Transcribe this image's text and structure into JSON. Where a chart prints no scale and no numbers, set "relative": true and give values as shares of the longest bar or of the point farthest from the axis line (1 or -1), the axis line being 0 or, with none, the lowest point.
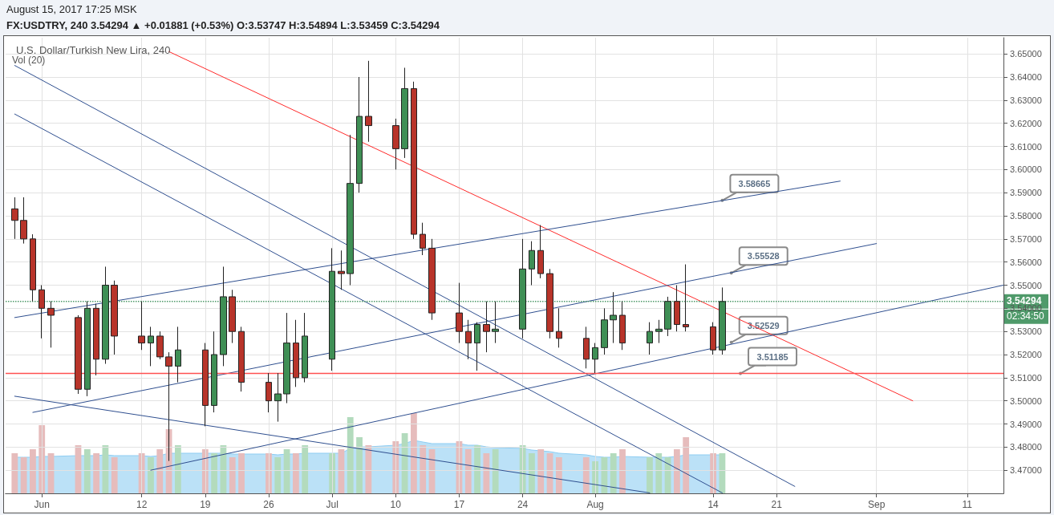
{
  "chart_data": [
    {
      "type": "candlestick",
      "title": "U.S. Dollar/Turkish New Lira, 240",
      "x": [
        "2017-05-29",
        "2017-05-30",
        "2017-05-31",
        "2017-06-01",
        "2017-06-02",
        "2017-06-05",
        "2017-06-06",
        "2017-06-07",
        "2017-06-08",
        "2017-06-09",
        "2017-06-12",
        "2017-06-13",
        "2017-06-14",
        "2017-06-15",
        "2017-06-16",
        "2017-06-19",
        "2017-06-20",
        "2017-06-21",
        "2017-06-22",
        "2017-06-23",
        "2017-06-26",
        "2017-06-27",
        "2017-06-28",
        "2017-06-29",
        "2017-06-30",
        "2017-07-03",
        "2017-07-04",
        "2017-07-05",
        "2017-07-06",
        "2017-07-07",
        "2017-07-10",
        "2017-07-11",
        "2017-07-12",
        "2017-07-13",
        "2017-07-14",
        "2017-07-17",
        "2017-07-18",
        "2017-07-19",
        "2017-07-20",
        "2017-07-21",
        "2017-07-24",
        "2017-07-25",
        "2017-07-26",
        "2017-07-27",
        "2017-07-28",
        "2017-07-31",
        "2017-08-01",
        "2017-08-02",
        "2017-08-03",
        "2017-08-04",
        "2017-08-07",
        "2017-08-08",
        "2017-08-09",
        "2017-08-10",
        "2017-08-11",
        "2017-08-14",
        "2017-08-15"
      ],
      "ohlc": [
        [
          3.583,
          3.588,
          3.57,
          3.578
        ],
        [
          3.578,
          3.588,
          3.568,
          3.57
        ],
        [
          3.57,
          3.572,
          3.543,
          3.548
        ],
        [
          3.548,
          3.55,
          3.527,
          3.54
        ],
        [
          3.54,
          3.543,
          3.523,
          3.537
        ],
        [
          3.536,
          3.537,
          3.503,
          3.505
        ],
        [
          3.505,
          3.543,
          3.502,
          3.54
        ],
        [
          3.54,
          3.542,
          3.511,
          3.518
        ],
        [
          3.518,
          3.558,
          3.516,
          3.55
        ],
        [
          3.55,
          3.552,
          3.52,
          3.528
        ],
        [
          3.528,
          3.543,
          3.522,
          3.525
        ],
        [
          3.525,
          3.532,
          3.515,
          3.528
        ],
        [
          3.528,
          3.53,
          3.518,
          3.519
        ],
        [
          3.519,
          3.521,
          3.474,
          3.515
        ],
        [
          3.515,
          3.532,
          3.508,
          3.522
        ],
        [
          3.522,
          3.525,
          3.489,
          3.498
        ],
        [
          3.498,
          3.53,
          3.495,
          3.52
        ],
        [
          3.52,
          3.558,
          3.515,
          3.545
        ],
        [
          3.545,
          3.548,
          3.525,
          3.53
        ],
        [
          3.53,
          3.532,
          3.504,
          3.508
        ],
        [
          3.508,
          3.512,
          3.495,
          3.5
        ],
        [
          3.5,
          3.512,
          3.491,
          3.503
        ],
        [
          3.503,
          3.538,
          3.499,
          3.525
        ],
        [
          3.525,
          3.535,
          3.506,
          3.51
        ],
        [
          3.51,
          3.538,
          3.508,
          3.528
        ],
        [
          3.518,
          3.566,
          3.513,
          3.556
        ],
        [
          3.556,
          3.565,
          3.548,
          3.555
        ],
        [
          3.555,
          3.615,
          3.55,
          3.594
        ],
        [
          3.594,
          3.64,
          3.59,
          3.623
        ],
        [
          3.623,
          3.647,
          3.612,
          3.619
        ],
        [
          3.619,
          3.622,
          3.6,
          3.609
        ],
        [
          3.609,
          3.644,
          3.605,
          3.635
        ],
        [
          3.635,
          3.638,
          3.57,
          3.572
        ],
        [
          3.572,
          3.577,
          3.563,
          3.566
        ],
        [
          3.566,
          3.57,
          3.535,
          3.538
        ],
        [
          3.538,
          3.551,
          3.525,
          3.53
        ],
        [
          3.53,
          3.535,
          3.518,
          3.525
        ],
        [
          3.525,
          3.534,
          3.513,
          3.533
        ],
        [
          3.533,
          3.543,
          3.521,
          3.53
        ],
        [
          3.53,
          3.543,
          3.525,
          3.531
        ],
        [
          3.531,
          3.57,
          3.527,
          3.557
        ],
        [
          3.557,
          3.569,
          3.55,
          3.565
        ],
        [
          3.565,
          3.576,
          3.553,
          3.555
        ],
        [
          3.555,
          3.557,
          3.527,
          3.53
        ],
        [
          3.53,
          3.54,
          3.523,
          3.527
        ],
        [
          3.527,
          3.532,
          3.514,
          3.518
        ],
        [
          3.518,
          3.525,
          3.512,
          3.523
        ],
        [
          3.523,
          3.54,
          3.52,
          3.535
        ],
        [
          3.535,
          3.547,
          3.525,
          3.537
        ],
        [
          3.537,
          3.543,
          3.522,
          3.525
        ],
        [
          3.525,
          3.534,
          3.52,
          3.53
        ],
        [
          3.53,
          3.535,
          3.525,
          3.531
        ],
        [
          3.531,
          3.545,
          3.528,
          3.543
        ],
        [
          3.543,
          3.55,
          3.53,
          3.533
        ],
        [
          3.533,
          3.559,
          3.53,
          3.532
        ],
        [
          3.532,
          3.534,
          3.52,
          3.522
        ],
        [
          3.522,
          3.549,
          3.52,
          3.54294
        ]
      ],
      "colors": [
        "#b8342a",
        "#b8342a",
        "#b8342a",
        "#b8342a",
        "#b8342a",
        "#b8342a",
        "#3f8f55",
        "#b8342a",
        "#3f8f55",
        "#b8342a",
        "#b8342a",
        "#3f8f55",
        "#b8342a",
        "#b8342a",
        "#3f8f55",
        "#b8342a",
        "#3f8f55",
        "#3f8f55",
        "#b8342a",
        "#b8342a",
        "#b8342a",
        "#3f8f55",
        "#3f8f55",
        "#b8342a",
        "#3f8f55",
        "#3f8f55",
        "#b8342a",
        "#3f8f55",
        "#3f8f55",
        "#b8342a",
        "#b8342a",
        "#3f8f55",
        "#b8342a",
        "#b8342a",
        "#b8342a",
        "#b8342a",
        "#b8342a",
        "#3f8f55",
        "#b8342a",
        "#3f8f55",
        "#3f8f55",
        "#3f8f55",
        "#b8342a",
        "#b8342a",
        "#b8342a",
        "#b8342a",
        "#3f8f55",
        "#3f8f55",
        "#3f8f55",
        "#b8342a",
        "#3f8f55",
        "#3f8f55",
        "#3f8f55",
        "#b8342a",
        "#b8342a",
        "#b8342a",
        "#3f8f55"
      ],
      "series": [
        {
          "type": "line",
          "color": "#ff2a2a",
          "x": [
            "2017-06-15",
            "2017-09-05"
          ],
          "values": [
            3.651,
            3.5
          ]
        },
        {
          "type": "line",
          "color": "#2f4f8f",
          "x": [
            "2017-05-29",
            "2017-08-28"
          ],
          "values": [
            3.536,
            3.595
          ]
        },
        {
          "type": "line",
          "color": "#2f4f8f",
          "x": [
            "2017-05-31",
            "2017-09-01"
          ],
          "values": [
            3.495,
            3.568
          ]
        },
        {
          "type": "line",
          "color": "#2f4f8f",
          "x": [
            "2017-06-13",
            "2017-09-15"
          ],
          "values": [
            3.47,
            3.55
          ]
        },
        {
          "type": "line",
          "color": "#2f4f8f",
          "x": [
            "2017-05-29",
            "2017-08-23"
          ],
          "values": [
            3.645,
            3.463
          ]
        },
        {
          "type": "line",
          "color": "#2f4f8f",
          "x": [
            "2017-05-29",
            "2017-08-15"
          ],
          "values": [
            3.624,
            3.4602
          ]
        },
        {
          "type": "line",
          "color": "#2f4f8f",
          "x": [
            "2017-05-29",
            "2017-08-07"
          ],
          "values": [
            3.502,
            3.4602
          ]
        }
      ],
      "marker": "none",
      "xlim": [
        "2017-05-28",
        "2017-09-15"
      ],
      "xticks": [
        {
          "value": "2017-06-01",
          "label": "Jun"
        },
        {
          "value": "2017-06-12",
          "label": "12"
        },
        {
          "value": "2017-06-19",
          "label": "19"
        },
        {
          "value": "2017-06-26",
          "label": "26"
        },
        {
          "value": "2017-07-03",
          "label": "Jul"
        },
        {
          "value": "2017-07-10",
          "label": "10"
        },
        {
          "value": "2017-07-17",
          "label": "17"
        },
        {
          "value": "2017-07-24",
          "label": "24"
        },
        {
          "value": "2017-08-01",
          "label": "Aug"
        },
        {
          "value": "2017-08-14",
          "label": "14"
        },
        {
          "value": "2017-08-21",
          "label": "21"
        },
        {
          "value": "2017-09-01",
          "label": "Sep"
        },
        {
          "value": "2017-09-11",
          "label": "11"
        }
      ],
      "ylim": [
        3.46,
        3.657
      ],
      "yticks": [
        {
          "value": 3.47,
          "label": "3.47000"
        },
        {
          "value": 3.48,
          "label": "3.48000"
        },
        {
          "value": 3.49,
          "label": "3.49000"
        },
        {
          "value": 3.5,
          "label": "3.50000"
        },
        {
          "value": 3.51,
          "label": "3.51000"
        },
        {
          "value": 3.52,
          "label": "3.52000"
        },
        {
          "value": 3.53,
          "label": "3.53000"
        },
        {
          "value": 3.54,
          "label": "3.54000"
        },
        {
          "value": 3.55,
          "label": "3.55000"
        },
        {
          "value": 3.56,
          "label": "3.56000"
        },
        {
          "value": 3.57,
          "label": "3.57000"
        },
        {
          "value": 3.58,
          "label": "3.58000"
        },
        {
          "value": 3.59,
          "label": "3.59000"
        },
        {
          "value": 3.6,
          "label": "3.60000"
        },
        {
          "value": 3.61,
          "label": "3.61000"
        },
        {
          "value": 3.62,
          "label": "3.62000"
        },
        {
          "value": 3.63,
          "label": "3.63000"
        },
        {
          "value": 3.64,
          "label": "3.64000"
        },
        {
          "value": 3.65,
          "label": "3.65000"
        }
      ],
      "grid": true,
      "ref_lines": [
        {
          "axis": "y",
          "value": 3.51185,
          "color": "#ff5050",
          "line_style": "solid"
        },
        {
          "axis": "y",
          "value": 3.54294,
          "label": "3.54294",
          "color": "#4f9a6a",
          "line_style": "dotted"
        }
      ],
      "annotations": [
        "August 15, 2017 17:25 MSK",
        "FX:USDTRY, 240  3.54294 ▲ +0.01881 (+0.53%) O:3.53747 H:3.54894 L:3.53459 C:3.54294",
        "Vol (20)",
        "02:34:50",
        {
          "text": "3.58665",
          "x": "2017-08-15",
          "y": 3.58665
        },
        {
          "text": "3.55528",
          "x": "2017-08-16",
          "y": 3.55528
        },
        {
          "text": "3.52529",
          "x": "2017-08-16",
          "y": 3.52529
        },
        {
          "text": "3.51185",
          "x": "2017-08-17",
          "y": 3.51185
        }
      ]
    },
    {
      "type": "bar",
      "relative": true,
      "x": [
        "2017-05-29",
        "2017-05-30",
        "2017-05-31",
        "2017-06-01",
        "2017-06-02",
        "2017-06-05",
        "2017-06-06",
        "2017-06-07",
        "2017-06-08",
        "2017-06-09",
        "2017-06-12",
        "2017-06-13",
        "2017-06-14",
        "2017-06-15",
        "2017-06-16",
        "2017-06-19",
        "2017-06-20",
        "2017-06-21",
        "2017-06-22",
        "2017-06-23",
        "2017-06-26",
        "2017-06-27",
        "2017-06-28",
        "2017-06-29",
        "2017-06-30",
        "2017-07-03",
        "2017-07-04",
        "2017-07-05",
        "2017-07-06",
        "2017-07-07",
        "2017-07-10",
        "2017-07-11",
        "2017-07-12",
        "2017-07-13",
        "2017-07-14",
        "2017-07-17",
        "2017-07-18",
        "2017-07-19",
        "2017-07-20",
        "2017-07-21",
        "2017-07-24",
        "2017-07-25",
        "2017-07-26",
        "2017-07-27",
        "2017-07-28",
        "2017-07-31",
        "2017-08-01",
        "2017-08-02",
        "2017-08-03",
        "2017-08-04",
        "2017-08-07",
        "2017-08-08",
        "2017-08-09",
        "2017-08-10",
        "2017-08-11",
        "2017-08-14",
        "2017-08-15"
      ],
      "xlim": [
        "2017-05-28",
        "2017-09-15"
      ],
      "series": [
        {
          "type": "bar",
          "values": [
            0.5,
            0.45,
            0.55,
            0.85,
            0.5,
            0.6,
            0.55,
            0.5,
            0.6,
            0.45,
            0.5,
            0.45,
            0.55,
            0.8,
            0.6,
            0.55,
            0.5,
            0.6,
            0.45,
            0.5,
            0.5,
            0.45,
            0.55,
            0.5,
            0.6,
            0.5,
            0.55,
            0.95,
            0.7,
            0.6,
            0.65,
            0.75,
            1,
            0.6,
            0.55,
            0.65,
            0.55,
            0.6,
            0.5,
            0.55,
            0.6,
            0.5,
            0.55,
            0.5,
            0.45,
            0.45,
            0.4,
            0.45,
            0.5,
            0.55,
            0.45,
            0.5,
            0.45,
            0.55,
            0.7,
            0.5,
            0.5
          ],
          "colors": [
            "#e6bcbc",
            "#e6bcbc",
            "#e6bcbc",
            "#e6bcbc",
            "#e6bcbc",
            "#e6bcbc",
            "#b3dbbd",
            "#e6bcbc",
            "#b3dbbd",
            "#e6bcbc",
            "#e6bcbc",
            "#b3dbbd",
            "#e6bcbc",
            "#e6bcbc",
            "#b3dbbd",
            "#e6bcbc",
            "#b3dbbd",
            "#b3dbbd",
            "#e6bcbc",
            "#e6bcbc",
            "#e6bcbc",
            "#b3dbbd",
            "#b3dbbd",
            "#e6bcbc",
            "#b3dbbd",
            "#b3dbbd",
            "#e6bcbc",
            "#b3dbbd",
            "#b3dbbd",
            "#e6bcbc",
            "#e6bcbc",
            "#b3dbbd",
            "#e6bcbc",
            "#e6bcbc",
            "#e6bcbc",
            "#e6bcbc",
            "#e6bcbc",
            "#b3dbbd",
            "#e6bcbc",
            "#b3dbbd",
            "#b3dbbd",
            "#b3dbbd",
            "#e6bcbc",
            "#e6bcbc",
            "#e6bcbc",
            "#e6bcbc",
            "#b3dbbd",
            "#b3dbbd",
            "#b3dbbd",
            "#e6bcbc",
            "#b3dbbd",
            "#b3dbbd",
            "#b3dbbd",
            "#e6bcbc",
            "#e6bcbc",
            "#e6bcbc",
            "#b3dbbd"
          ]
        },
        {
          "type": "area",
          "color": "#8ecdf2",
          "values": [
            0.45,
            0.45,
            0.45,
            0.46,
            0.46,
            0.47,
            0.47,
            0.47,
            0.48,
            0.47,
            0.47,
            0.46,
            0.47,
            0.5,
            0.5,
            0.5,
            0.5,
            0.5,
            0.49,
            0.49,
            0.49,
            0.48,
            0.49,
            0.49,
            0.5,
            0.5,
            0.5,
            0.56,
            0.58,
            0.58,
            0.6,
            0.62,
            0.66,
            0.64,
            0.62,
            0.62,
            0.6,
            0.6,
            0.58,
            0.57,
            0.56,
            0.54,
            0.53,
            0.52,
            0.5,
            0.48,
            0.46,
            0.45,
            0.45,
            0.46,
            0.45,
            0.45,
            0.45,
            0.46,
            0.48,
            0.48,
            0.48
          ]
        }
      ]
    }
  ]
}
